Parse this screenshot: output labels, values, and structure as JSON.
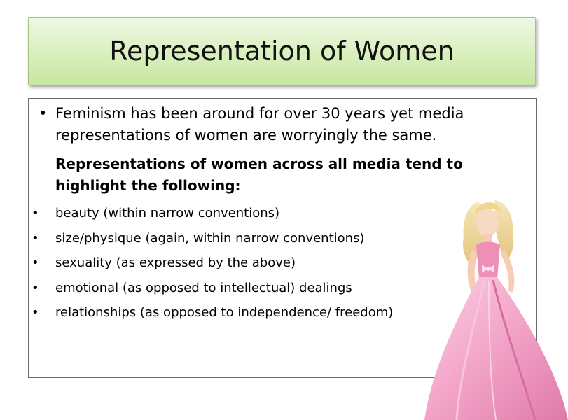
{
  "slide": {
    "title": "Representation of Women",
    "intro": "Feminism has been around for over 30 years yet media representations of women are worryingly the same.",
    "subhead": "Representations of women across all media tend to highlight the following:",
    "bullet_glyph": "•",
    "items": [
      {
        "label": "beauty (within narrow conventions)"
      },
      {
        "label": "size/physique (again, within narrow conventions)"
      },
      {
        "label": "sexuality (as expressed by the above)"
      },
      {
        "label": "emotional (as opposed to intellectual) dealings"
      },
      {
        "label": "relationships (as opposed to independence/ freedom)"
      }
    ],
    "colors": {
      "title_bg": "#d9efbd",
      "title_border": "#a6c27e",
      "dress_pink": "#f2a3c7",
      "hair_blonde": "#f0dca0"
    }
  }
}
